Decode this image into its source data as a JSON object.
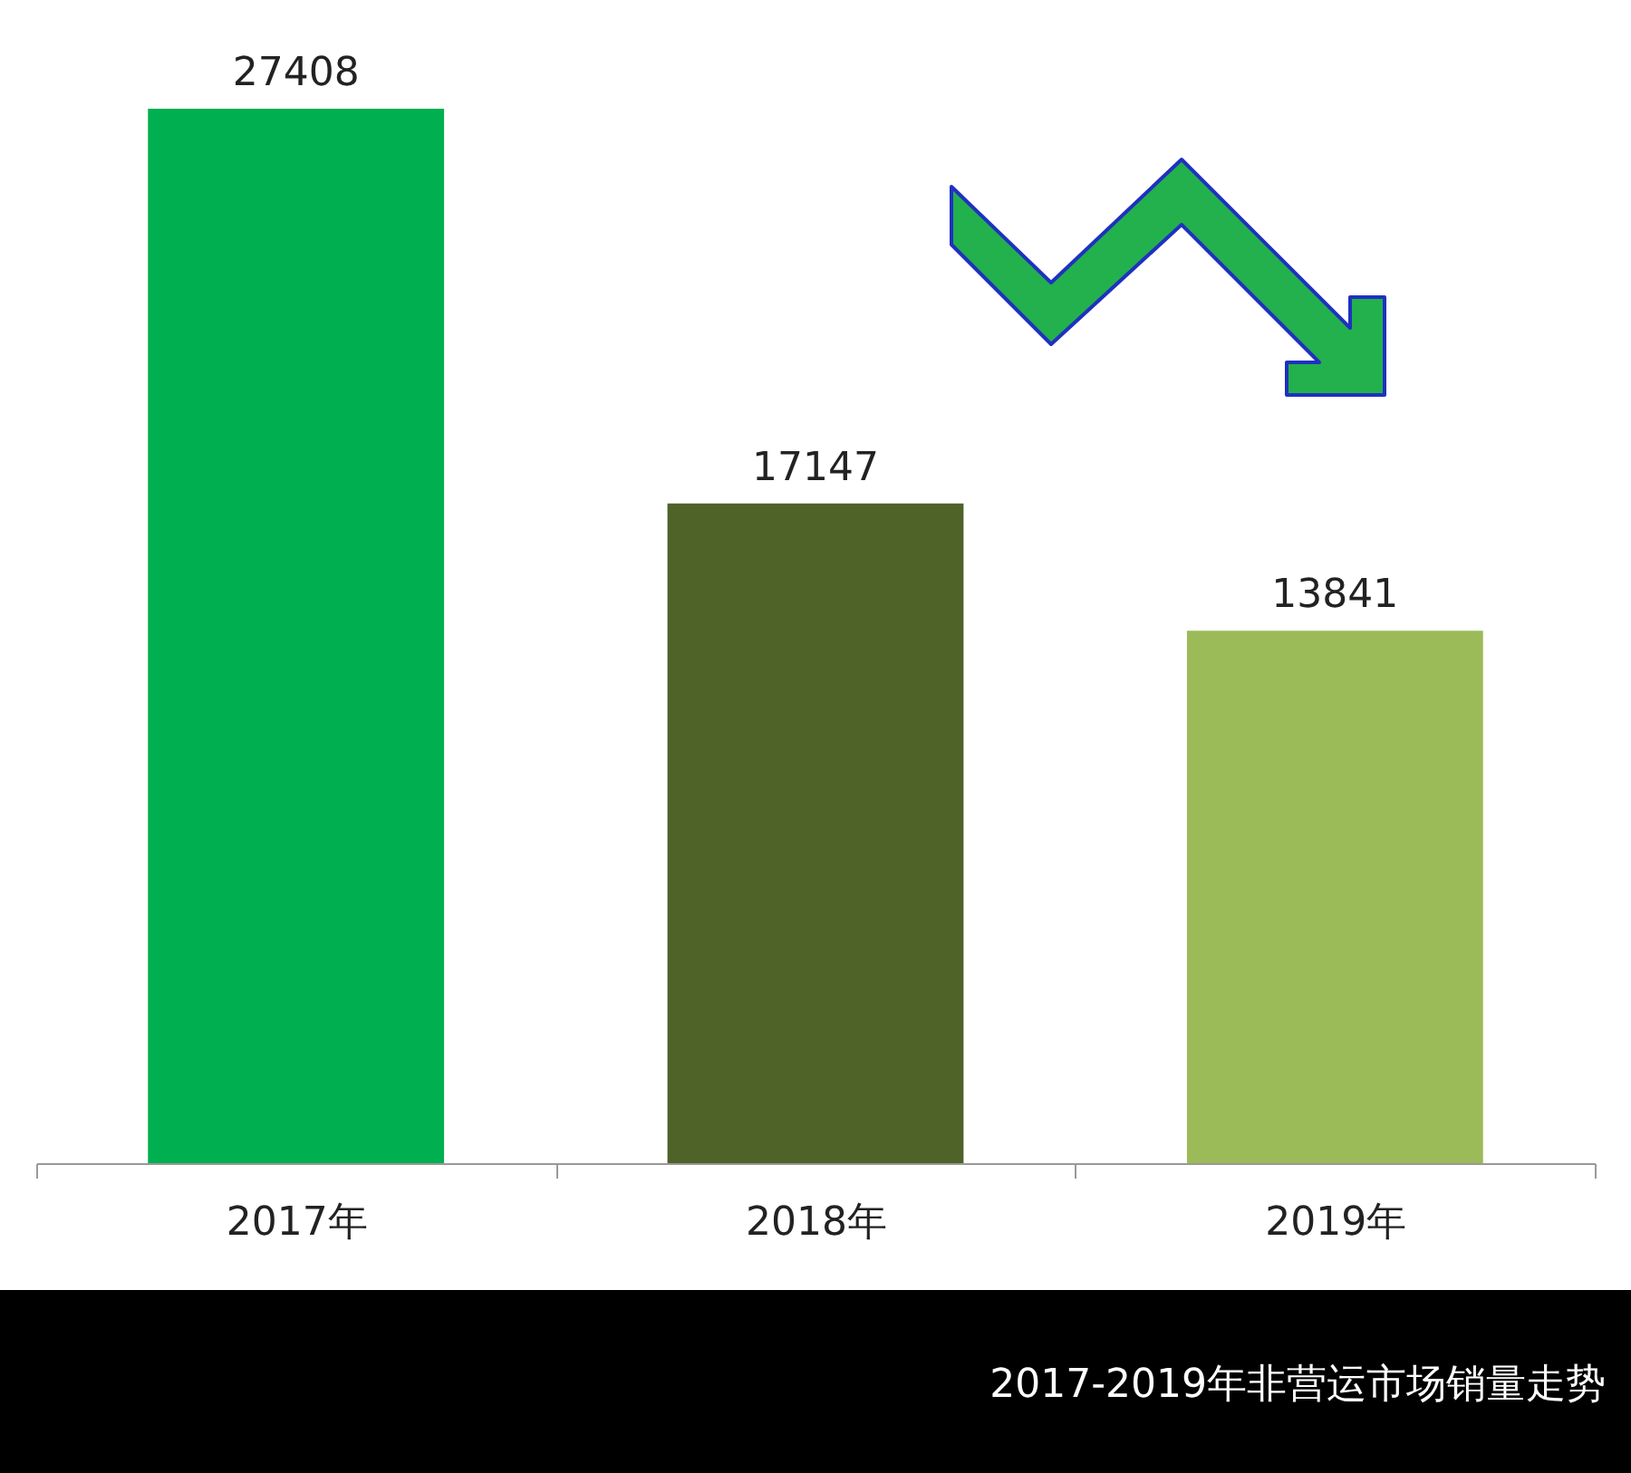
{
  "chart_data": {
    "type": "bar",
    "title": "2017-2019年非营运市场销量走势",
    "categories": [
      "2017年",
      "2018年",
      "2019年"
    ],
    "values": [
      27408,
      17147,
      13841
    ],
    "colors": [
      "#00b050",
      "#4f6228",
      "#9bbb59"
    ],
    "data_labels": true
  }
}
